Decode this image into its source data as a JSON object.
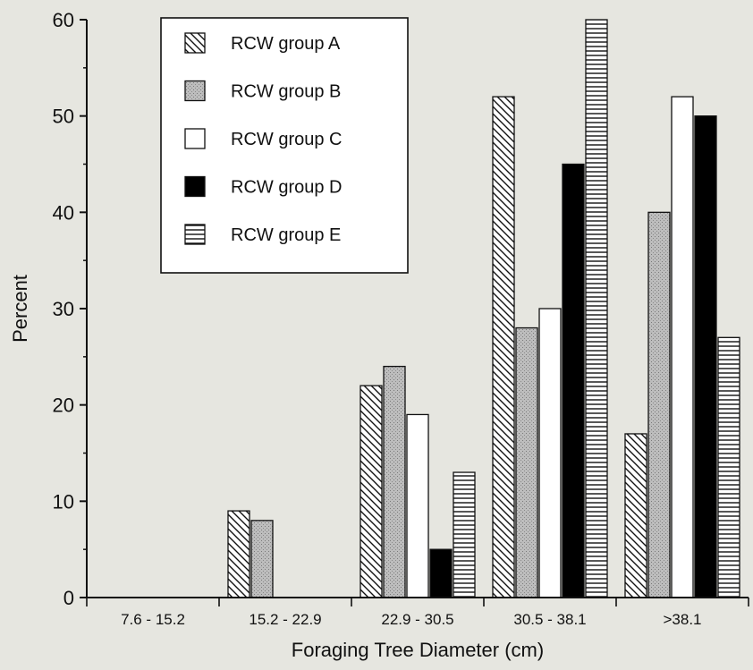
{
  "chart_data": {
    "type": "bar",
    "title": "",
    "xlabel": "Foraging Tree Diameter (cm)",
    "ylabel": "Percent",
    "ylim": [
      0,
      60
    ],
    "yticks": [
      "0",
      "10",
      "20",
      "30",
      "40",
      "50",
      "60"
    ],
    "categories": [
      "7.6 - 15.2",
      "15.2 - 22.9",
      "22.9 - 30.5",
      "30.5 - 38.1",
      ">38.1"
    ],
    "legend_position": "top-left",
    "grid": false,
    "series": [
      {
        "name": "RCW group A",
        "pattern": "diagonal-hatch",
        "color": "#ffffff",
        "values": [
          0,
          9,
          22,
          52,
          17
        ]
      },
      {
        "name": "RCW group B",
        "pattern": "stipple-gray",
        "color": "#b8b8b8",
        "values": [
          0,
          8,
          24,
          28,
          40
        ]
      },
      {
        "name": "RCW group C",
        "pattern": "solid",
        "color": "#ffffff",
        "values": [
          0,
          0,
          19,
          30,
          52
        ]
      },
      {
        "name": "RCW group D",
        "pattern": "solid",
        "color": "#000000",
        "values": [
          0,
          0,
          5,
          45,
          50
        ]
      },
      {
        "name": "RCW group E",
        "pattern": "horizontal-lines",
        "color": "#ffffff",
        "values": [
          0,
          0,
          13,
          60,
          27
        ]
      }
    ]
  }
}
